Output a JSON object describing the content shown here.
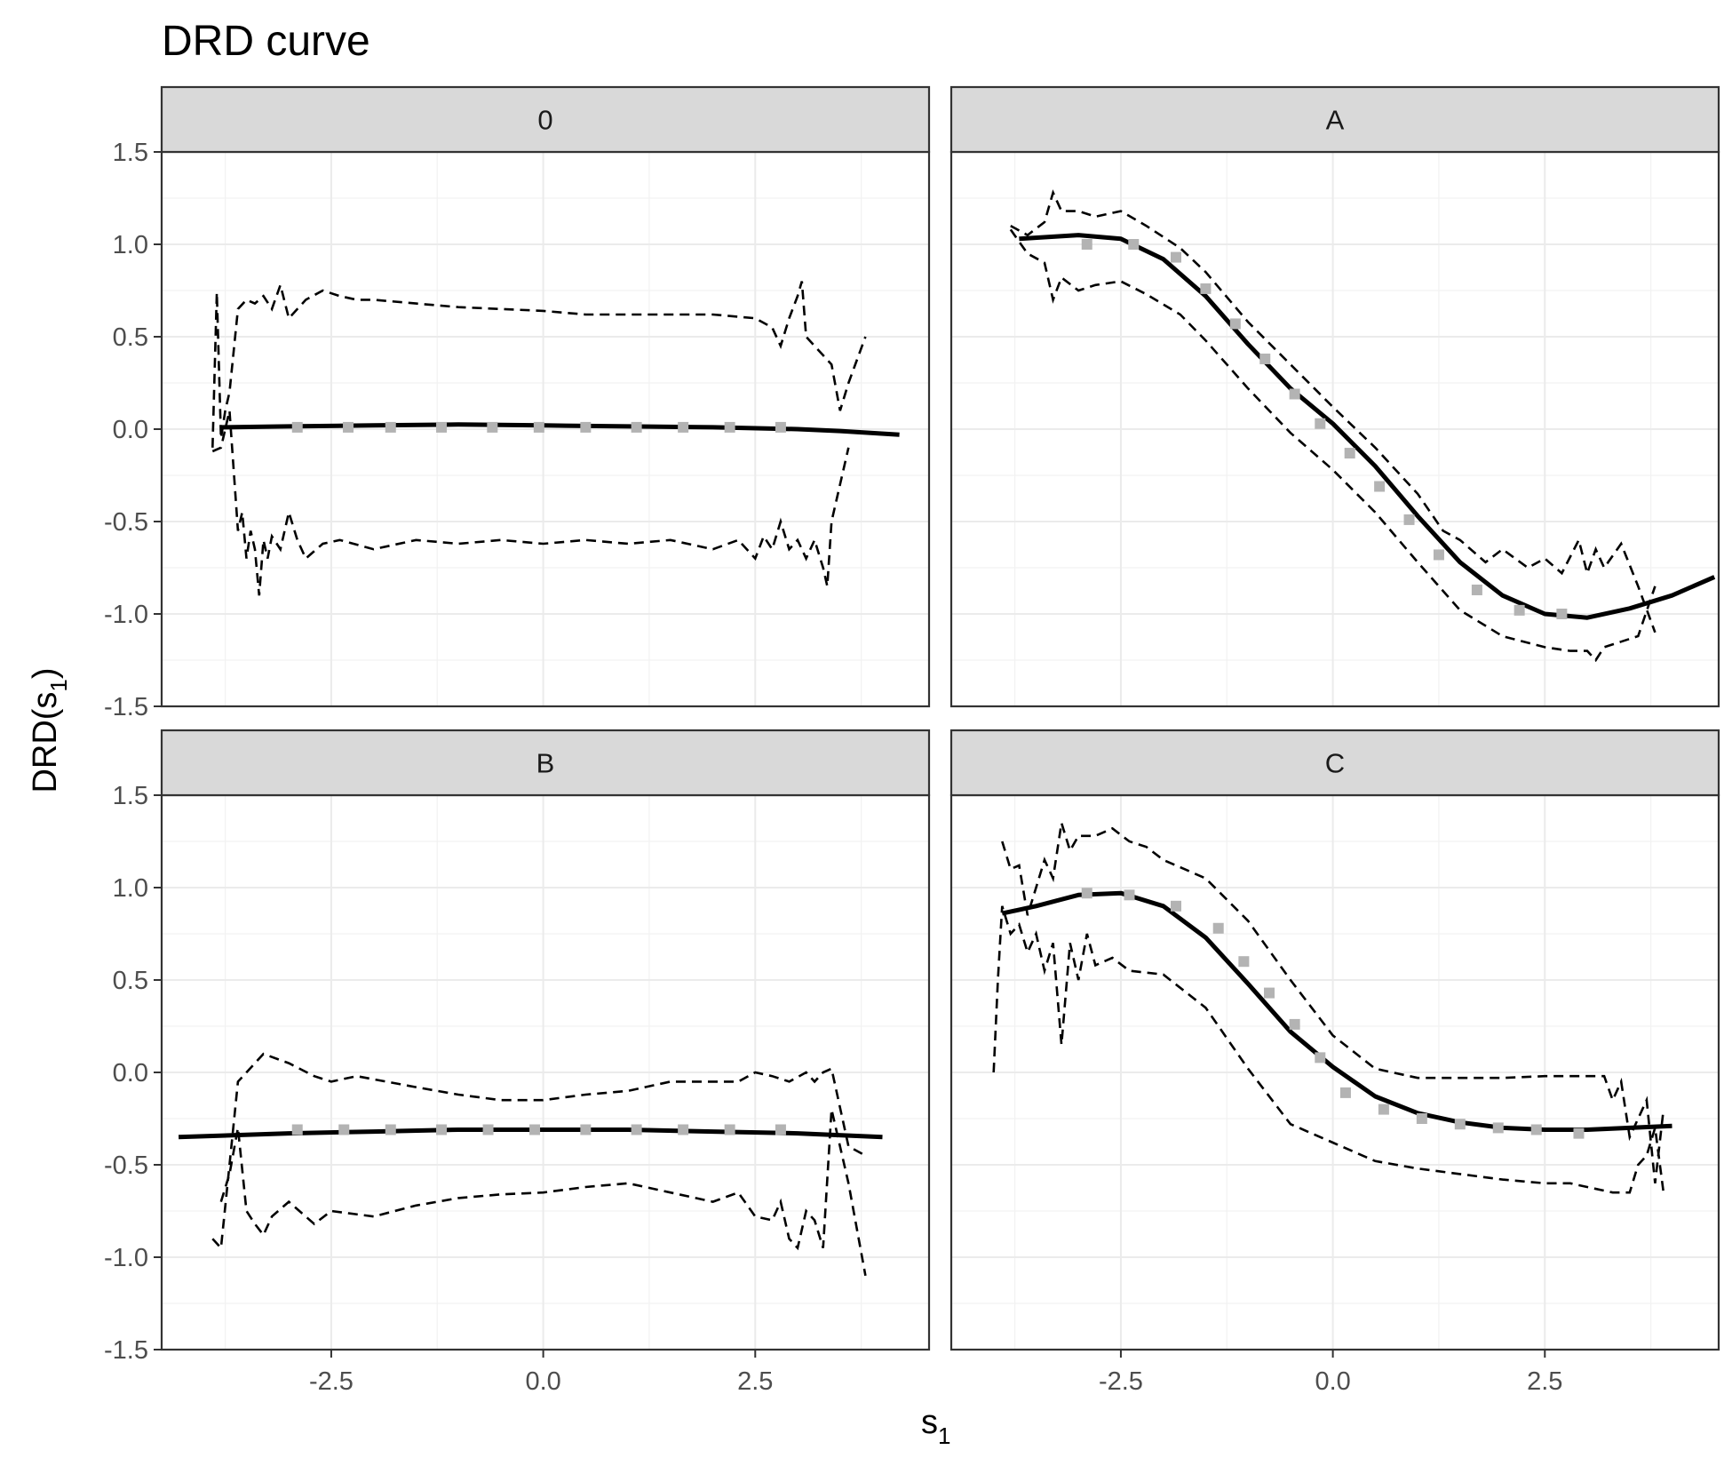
{
  "chart_data": {
    "type": "line",
    "title": "DRD curve",
    "xlabel": "s",
    "xlabel_subscript": "1",
    "ylabel": "DRD(s",
    "ylabel_subscript": "1",
    "ylabel_suffix": ")",
    "xlim": [
      -4.5,
      4.55
    ],
    "ylim": [
      -1.5,
      1.5
    ],
    "x_ticks": [
      -2.5,
      0.0,
      2.5
    ],
    "x_tick_labels": [
      "-2.5",
      "0.0",
      "2.5"
    ],
    "y_ticks": [
      -1.5,
      -1.0,
      -0.5,
      0.0,
      0.5,
      1.0,
      1.5
    ],
    "y_tick_labels": [
      "-1.5",
      "-1.0",
      "-0.5",
      "0.0",
      "0.5",
      "1.0",
      "1.5"
    ],
    "grid": true,
    "panels": [
      {
        "label": "0",
        "estimate": {
          "x": [
            -3.8,
            -3.0,
            -2.0,
            -1.0,
            0.0,
            1.0,
            2.0,
            3.0,
            3.5,
            4.2
          ],
          "y": [
            0.01,
            0.015,
            0.02,
            0.025,
            0.02,
            0.015,
            0.01,
            0.0,
            -0.01,
            -0.03
          ]
        },
        "points": {
          "x": [
            -2.9,
            -2.3,
            -1.8,
            -1.2,
            -0.6,
            -0.05,
            0.5,
            1.1,
            1.65,
            2.2,
            2.8
          ],
          "y": [
            0.01,
            0.01,
            0.01,
            0.01,
            0.01,
            0.01,
            0.01,
            0.01,
            0.01,
            0.01,
            0.01
          ]
        },
        "upper": {
          "x": [
            -3.9,
            -3.85,
            -3.8,
            -3.75,
            -3.7,
            -3.6,
            -3.5,
            -3.4,
            -3.3,
            -3.2,
            -3.1,
            -3.0,
            -2.9,
            -2.8,
            -2.6,
            -2.4,
            -2.2,
            -2.0,
            -1.5,
            -1.0,
            -0.5,
            0.0,
            0.5,
            1.0,
            1.5,
            2.0,
            2.5,
            2.7,
            2.8,
            2.9,
            3.0,
            3.05,
            3.1,
            3.2,
            3.4,
            3.5,
            3.6,
            3.8
          ],
          "y": [
            -0.1,
            0.74,
            -0.05,
            0.1,
            0.2,
            0.65,
            0.7,
            0.68,
            0.72,
            0.65,
            0.78,
            0.6,
            0.65,
            0.7,
            0.75,
            0.72,
            0.7,
            0.7,
            0.68,
            0.66,
            0.65,
            0.64,
            0.62,
            0.62,
            0.62,
            0.62,
            0.6,
            0.55,
            0.45,
            0.6,
            0.72,
            0.8,
            0.5,
            0.45,
            0.35,
            0.1,
            0.25,
            0.5
          ]
        },
        "lower": {
          "x": [
            -3.9,
            -3.8,
            -3.7,
            -3.6,
            -3.55,
            -3.5,
            -3.45,
            -3.4,
            -3.35,
            -3.3,
            -3.25,
            -3.2,
            -3.1,
            -3.0,
            -2.9,
            -2.8,
            -2.6,
            -2.4,
            -2.0,
            -1.5,
            -1.0,
            -0.5,
            0.0,
            0.5,
            1.0,
            1.5,
            2.0,
            2.3,
            2.5,
            2.6,
            2.7,
            2.8,
            2.9,
            3.0,
            3.1,
            3.2,
            3.3,
            3.35,
            3.4,
            3.6
          ],
          "y": [
            -0.12,
            -0.1,
            0.1,
            -0.55,
            -0.45,
            -0.7,
            -0.55,
            -0.65,
            -0.9,
            -0.6,
            -0.7,
            -0.58,
            -0.65,
            -0.45,
            -0.6,
            -0.7,
            -0.62,
            -0.6,
            -0.65,
            -0.6,
            -0.62,
            -0.6,
            -0.62,
            -0.6,
            -0.62,
            -0.6,
            -0.65,
            -0.6,
            -0.7,
            -0.58,
            -0.65,
            -0.5,
            -0.65,
            -0.6,
            -0.7,
            -0.6,
            -0.75,
            -0.85,
            -0.5,
            -0.1
          ]
        }
      },
      {
        "label": "A",
        "estimate": {
          "x": [
            -3.7,
            -3.0,
            -2.5,
            -2.0,
            -1.5,
            -1.0,
            -0.5,
            0.0,
            0.5,
            1.0,
            1.5,
            2.0,
            2.5,
            3.0,
            3.5,
            4.0,
            4.5
          ],
          "y": [
            1.03,
            1.05,
            1.03,
            0.92,
            0.72,
            0.46,
            0.22,
            0.03,
            -0.2,
            -0.47,
            -0.72,
            -0.9,
            -1.0,
            -1.02,
            -0.97,
            -0.9,
            -0.8
          ]
        },
        "points": {
          "x": [
            -2.9,
            -2.35,
            -1.85,
            -1.5,
            -1.15,
            -0.8,
            -0.45,
            -0.15,
            0.2,
            0.55,
            0.9,
            1.25,
            1.7,
            2.2,
            2.7
          ],
          "y": [
            1.0,
            1.0,
            0.93,
            0.76,
            0.57,
            0.38,
            0.19,
            0.03,
            -0.13,
            -0.31,
            -0.49,
            -0.68,
            -0.87,
            -0.98,
            -1.0
          ]
        },
        "upper": {
          "x": [
            -3.8,
            -3.6,
            -3.4,
            -3.3,
            -3.2,
            -3.0,
            -2.8,
            -2.5,
            -2.2,
            -1.8,
            -1.5,
            -1.0,
            -0.5,
            0.0,
            0.5,
            1.0,
            1.3,
            1.5,
            1.8,
            2.0,
            2.3,
            2.5,
            2.7,
            2.9,
            3.0,
            3.1,
            3.2,
            3.4,
            3.6,
            3.8
          ],
          "y": [
            1.1,
            1.05,
            1.12,
            1.28,
            1.18,
            1.18,
            1.15,
            1.18,
            1.1,
            0.98,
            0.85,
            0.58,
            0.35,
            0.12,
            -0.1,
            -0.35,
            -0.55,
            -0.6,
            -0.72,
            -0.65,
            -0.75,
            -0.7,
            -0.78,
            -0.6,
            -0.78,
            -0.65,
            -0.75,
            -0.62,
            -0.85,
            -1.1
          ]
        },
        "lower": {
          "x": [
            -3.8,
            -3.6,
            -3.4,
            -3.3,
            -3.2,
            -3.0,
            -2.8,
            -2.5,
            -2.2,
            -1.8,
            -1.5,
            -1.0,
            -0.5,
            0.0,
            0.5,
            1.0,
            1.5,
            2.0,
            2.5,
            2.8,
            3.0,
            3.1,
            3.2,
            3.4,
            3.6,
            3.8
          ],
          "y": [
            1.08,
            0.95,
            0.9,
            0.7,
            0.82,
            0.75,
            0.78,
            0.8,
            0.73,
            0.62,
            0.48,
            0.22,
            -0.02,
            -0.22,
            -0.45,
            -0.72,
            -0.98,
            -1.12,
            -1.18,
            -1.2,
            -1.2,
            -1.25,
            -1.18,
            -1.15,
            -1.12,
            -0.85
          ]
        }
      },
      {
        "label": "B",
        "estimate": {
          "x": [
            -4.3,
            -3.0,
            -2.0,
            -1.0,
            0.0,
            1.0,
            2.0,
            3.0,
            4.0
          ],
          "y": [
            -0.35,
            -0.33,
            -0.32,
            -0.31,
            -0.31,
            -0.31,
            -0.32,
            -0.33,
            -0.35
          ]
        },
        "points": {
          "x": [
            -2.9,
            -2.35,
            -1.8,
            -1.2,
            -0.65,
            -0.1,
            0.5,
            1.1,
            1.65,
            2.2,
            2.8
          ],
          "y": [
            -0.31,
            -0.31,
            -0.31,
            -0.31,
            -0.31,
            -0.31,
            -0.31,
            -0.31,
            -0.31,
            -0.31,
            -0.31
          ]
        },
        "upper": {
          "x": [
            -3.9,
            -3.8,
            -3.7,
            -3.6,
            -3.5,
            -3.3,
            -3.0,
            -2.7,
            -2.5,
            -2.2,
            -1.5,
            -1.0,
            -0.5,
            0.0,
            0.5,
            1.0,
            1.5,
            2.0,
            2.3,
            2.5,
            2.7,
            2.9,
            3.1,
            3.2,
            3.3,
            3.4,
            3.6,
            3.8
          ],
          "y": [
            -0.9,
            -0.95,
            -0.5,
            -0.05,
            0.0,
            0.1,
            0.05,
            -0.02,
            -0.05,
            -0.02,
            -0.08,
            -0.12,
            -0.15,
            -0.15,
            -0.12,
            -0.1,
            -0.05,
            -0.05,
            -0.05,
            0.0,
            -0.02,
            -0.05,
            0.0,
            -0.05,
            0.0,
            0.02,
            -0.4,
            -0.45
          ]
        },
        "lower": {
          "x": [
            -3.8,
            -3.7,
            -3.6,
            -3.5,
            -3.4,
            -3.3,
            -3.2,
            -3.0,
            -2.7,
            -2.5,
            -2.0,
            -1.5,
            -1.0,
            -0.5,
            0.0,
            0.5,
            1.0,
            1.5,
            2.0,
            2.3,
            2.5,
            2.7,
            2.8,
            2.9,
            3.0,
            3.1,
            3.2,
            3.3,
            3.4,
            3.6,
            3.8
          ],
          "y": [
            -0.7,
            -0.55,
            -0.3,
            -0.75,
            -0.82,
            -0.88,
            -0.78,
            -0.7,
            -0.82,
            -0.75,
            -0.78,
            -0.72,
            -0.68,
            -0.66,
            -0.65,
            -0.62,
            -0.6,
            -0.65,
            -0.7,
            -0.65,
            -0.78,
            -0.8,
            -0.7,
            -0.9,
            -0.95,
            -0.75,
            -0.8,
            -0.95,
            -0.2,
            -0.6,
            -1.1
          ]
        }
      },
      {
        "label": "C",
        "estimate": {
          "x": [
            -3.9,
            -3.5,
            -3.0,
            -2.5,
            -2.0,
            -1.5,
            -1.0,
            -0.5,
            0.0,
            0.5,
            1.0,
            1.5,
            2.0,
            2.5,
            3.0,
            3.5,
            4.0
          ],
          "y": [
            0.86,
            0.9,
            0.96,
            0.97,
            0.9,
            0.73,
            0.48,
            0.22,
            0.03,
            -0.13,
            -0.22,
            -0.27,
            -0.3,
            -0.31,
            -0.31,
            -0.3,
            -0.29
          ]
        },
        "points": {
          "x": [
            -2.9,
            -2.4,
            -1.85,
            -1.35,
            -1.05,
            -0.75,
            -0.45,
            -0.15,
            0.15,
            0.6,
            1.05,
            1.5,
            1.95,
            2.4,
            2.9
          ],
          "y": [
            0.97,
            0.96,
            0.9,
            0.78,
            0.6,
            0.43,
            0.26,
            0.08,
            -0.11,
            -0.2,
            -0.25,
            -0.28,
            -0.3,
            -0.31,
            -0.33
          ]
        },
        "upper": {
          "x": [
            -3.9,
            -3.8,
            -3.7,
            -3.6,
            -3.5,
            -3.4,
            -3.3,
            -3.2,
            -3.1,
            -3.0,
            -2.8,
            -2.6,
            -2.4,
            -2.2,
            -2.0,
            -1.5,
            -1.0,
            -0.5,
            0.0,
            0.5,
            1.0,
            1.5,
            2.0,
            2.5,
            2.8,
            2.9,
            3.0,
            3.2,
            3.3,
            3.4,
            3.5,
            3.6,
            3.7,
            3.8,
            3.9
          ],
          "y": [
            1.25,
            1.1,
            1.12,
            0.85,
            1.0,
            1.15,
            1.05,
            1.35,
            1.2,
            1.28,
            1.28,
            1.32,
            1.25,
            1.22,
            1.15,
            1.05,
            0.82,
            0.5,
            0.2,
            0.02,
            -0.03,
            -0.03,
            -0.03,
            -0.02,
            -0.02,
            -0.02,
            -0.02,
            -0.02,
            -0.15,
            -0.05,
            -0.35,
            -0.25,
            -0.15,
            -0.6,
            -0.2
          ]
        },
        "lower": {
          "x": [
            -4.0,
            -3.95,
            -3.9,
            -3.8,
            -3.7,
            -3.6,
            -3.5,
            -3.4,
            -3.3,
            -3.2,
            -3.1,
            -3.0,
            -2.9,
            -2.8,
            -2.6,
            -2.4,
            -2.0,
            -1.5,
            -1.0,
            -0.5,
            0.0,
            0.5,
            1.0,
            1.5,
            2.0,
            2.5,
            2.8,
            3.0,
            3.3,
            3.5,
            3.6,
            3.7,
            3.8,
            3.9
          ],
          "y": [
            0.0,
            0.5,
            0.9,
            0.75,
            0.8,
            0.65,
            0.75,
            0.55,
            0.7,
            0.15,
            0.7,
            0.5,
            0.75,
            0.58,
            0.62,
            0.55,
            0.53,
            0.35,
            0.02,
            -0.28,
            -0.38,
            -0.48,
            -0.52,
            -0.55,
            -0.58,
            -0.6,
            -0.6,
            -0.62,
            -0.65,
            -0.65,
            -0.5,
            -0.45,
            -0.3,
            -0.65
          ]
        }
      }
    ]
  }
}
